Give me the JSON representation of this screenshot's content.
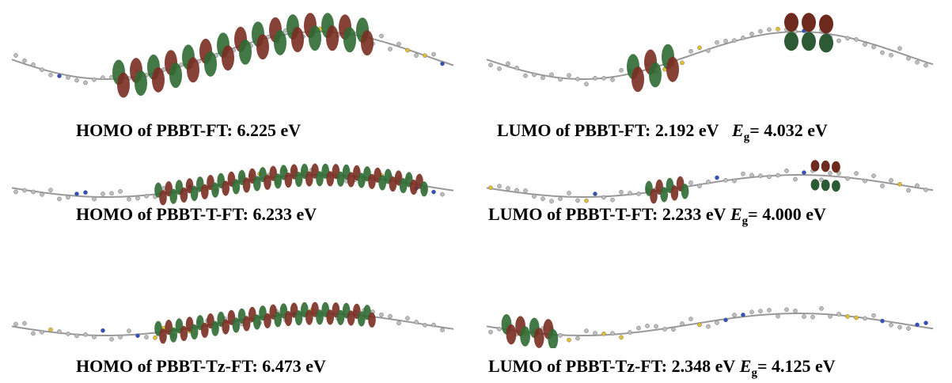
{
  "panels": [
    {
      "caption": "HOMO of PBBT-FT: 6.225 eV"
    },
    {
      "caption": "LUMO of PBBT-FT: 2.192 eV",
      "gap_symbol": "E",
      "gap_subscript": "g",
      "gap_value": "= 4.032 eV"
    },
    {
      "caption": "HOMO of PBBT-T-FT: 6.233 eV"
    },
    {
      "caption": "LUMO of PBBT-T-FT: 2.233 eV",
      "gap_symbol": "E",
      "gap_subscript": "g",
      "gap_value": "= 4.000 eV"
    },
    {
      "caption": "HOMO of PBBT-Tz-FT: 6.473 eV"
    },
    {
      "caption": "LUMO of PBBT-Tz-FT: 2.348 eV",
      "gap_symbol": "E",
      "gap_subscript": "g",
      "gap_value": "= 4.125 eV"
    }
  ]
}
